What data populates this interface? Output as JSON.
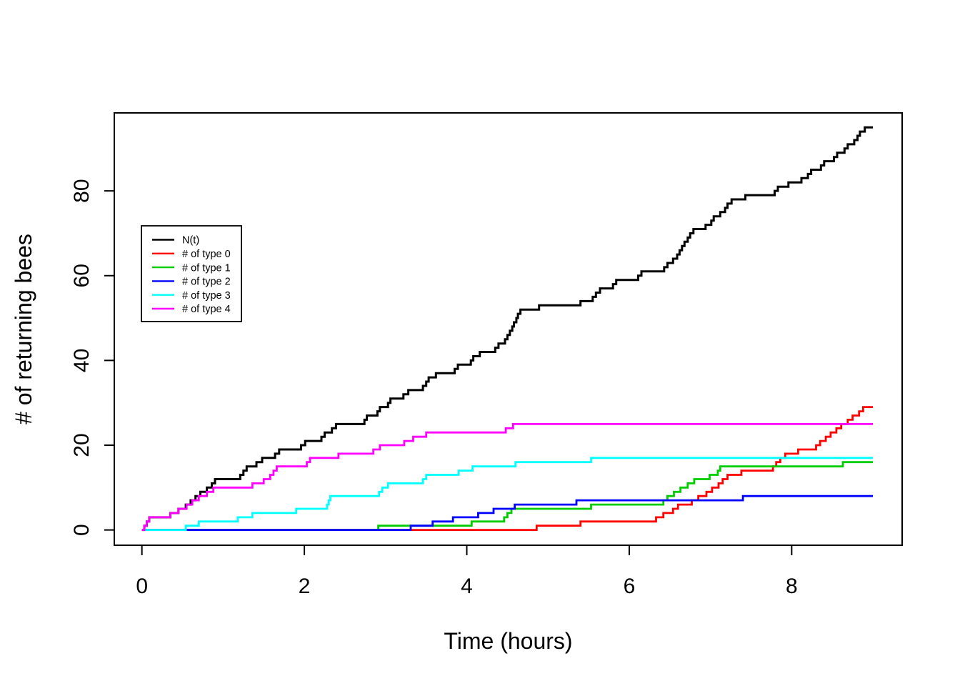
{
  "chart_data": {
    "type": "line",
    "subtype": "step-function-counting-process",
    "title": "",
    "xlabel": "Time (hours)",
    "ylabel": "# of returning bees",
    "x_ticks": [
      0,
      2,
      4,
      6,
      8
    ],
    "y_ticks": [
      0,
      20,
      40,
      60,
      80
    ],
    "xlim": [
      -0.34,
      9.36
    ],
    "ylim": [
      -3.6,
      98.4
    ],
    "start_time": 0,
    "end_time": 9,
    "grid": false,
    "legend_position": "upper-left-inset",
    "background_color": "#ffffff",
    "axis_color": "#000000",
    "series": [
      {
        "name": "N(t)",
        "color": "#000000",
        "start_value": 0,
        "final_value": 95,
        "jump_times": [
          0.03,
          0.06,
          0.09,
          0.35,
          0.45,
          0.54,
          0.6,
          0.66,
          0.72,
          0.8,
          0.86,
          0.9,
          1.21,
          1.25,
          1.29,
          1.41,
          1.48,
          1.64,
          1.69,
          1.96,
          2.01,
          2.21,
          2.25,
          2.34,
          2.39,
          2.74,
          2.77,
          2.9,
          2.93,
          3.03,
          3.06,
          3.22,
          3.28,
          3.46,
          3.5,
          3.53,
          3.62,
          3.85,
          3.89,
          4.05,
          4.08,
          4.16,
          4.35,
          4.39,
          4.47,
          4.5,
          4.53,
          4.56,
          4.58,
          4.61,
          4.63,
          4.66,
          4.89,
          5.4,
          5.55,
          5.59,
          5.64,
          5.8,
          5.84,
          6.11,
          6.15,
          6.43,
          6.47,
          6.54,
          6.59,
          6.62,
          6.65,
          6.68,
          6.72,
          6.75,
          6.79,
          6.94,
          7.01,
          7.04,
          7.12,
          7.18,
          7.21,
          7.26,
          7.43,
          7.79,
          7.83,
          7.96,
          8.12,
          8.2,
          8.24,
          8.36,
          8.4,
          8.52,
          8.56,
          8.65,
          8.69,
          8.77,
          8.81,
          8.84,
          8.9
        ]
      },
      {
        "name": "# of type 0",
        "color": "#FF0000",
        "start_value": 0,
        "final_value": 29,
        "jump_times": [
          4.86,
          5.4,
          6.33,
          6.42,
          6.54,
          6.6,
          6.77,
          6.85,
          6.95,
          7.02,
          7.1,
          7.15,
          7.21,
          7.38,
          7.77,
          7.81,
          7.86,
          7.92,
          8.08,
          8.3,
          8.35,
          8.42,
          8.48,
          8.55,
          8.61,
          8.69,
          8.75,
          8.83,
          8.88
        ]
      },
      {
        "name": "# of type 1",
        "color": "#00CD00",
        "start_value": 0,
        "final_value": 16,
        "jump_times": [
          2.91,
          4.06,
          4.46,
          4.5,
          4.55,
          5.53,
          6.42,
          6.47,
          6.55,
          6.63,
          6.72,
          6.8,
          6.99,
          7.09,
          7.12,
          8.63
        ]
      },
      {
        "name": "# of type 2",
        "color": "#0000FF",
        "start_value": 0,
        "final_value": 8,
        "jump_times": [
          3.31,
          3.58,
          3.83,
          4.14,
          4.33,
          4.59,
          5.35,
          7.4
        ]
      },
      {
        "name": "# of type 3",
        "color": "#00FFFF",
        "start_value": 0,
        "final_value": 17,
        "jump_times": [
          0.54,
          0.7,
          1.18,
          1.36,
          1.9,
          2.28,
          2.3,
          2.32,
          2.92,
          2.96,
          3.03,
          3.46,
          3.5,
          3.9,
          4.07,
          4.6,
          5.53
        ]
      },
      {
        "name": "# of type 4",
        "color": "#FF00FF",
        "start_value": 0,
        "final_value": 25,
        "jump_times": [
          0.03,
          0.06,
          0.09,
          0.35,
          0.45,
          0.55,
          0.62,
          0.7,
          0.8,
          0.88,
          1.36,
          1.5,
          1.58,
          1.62,
          1.66,
          2.03,
          2.07,
          2.42,
          2.85,
          2.93,
          3.23,
          3.34,
          3.5,
          4.48,
          4.57
        ]
      }
    ],
    "legend": {
      "entries": [
        {
          "label": "N(t)",
          "color": "#000000"
        },
        {
          "label": "# of type 0",
          "color": "#FF0000"
        },
        {
          "label": "# of type 1",
          "color": "#00CD00"
        },
        {
          "label": "# of type 2",
          "color": "#0000FF"
        },
        {
          "label": "# of type 3",
          "color": "#00FFFF"
        },
        {
          "label": "# of type 4",
          "color": "#FF00FF"
        }
      ]
    }
  }
}
